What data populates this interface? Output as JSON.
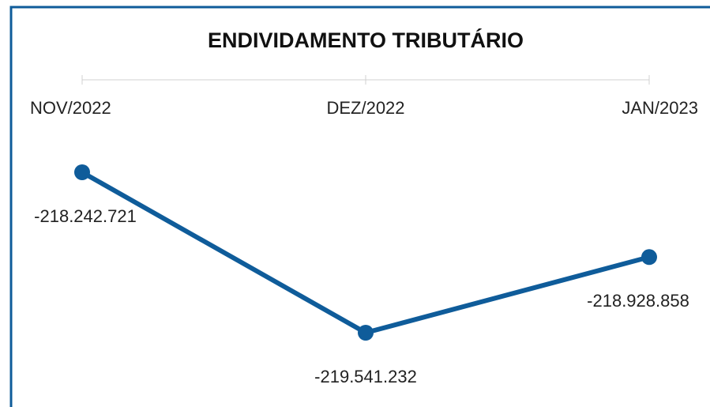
{
  "chart_data": {
    "type": "line",
    "title": "ENDIVIDAMENTO TRIBUTÁRIO",
    "categories": [
      "NOV/2022",
      "DEZ/2022",
      "JAN/2023"
    ],
    "series": [
      {
        "name": "Endividamento tributário",
        "color": "#0f5c9a",
        "values": [
          -218242721,
          -219541232,
          -218928858
        ],
        "value_labels": [
          "-218.242.721",
          "-219.541.232",
          "-218.928.858"
        ]
      }
    ]
  }
}
